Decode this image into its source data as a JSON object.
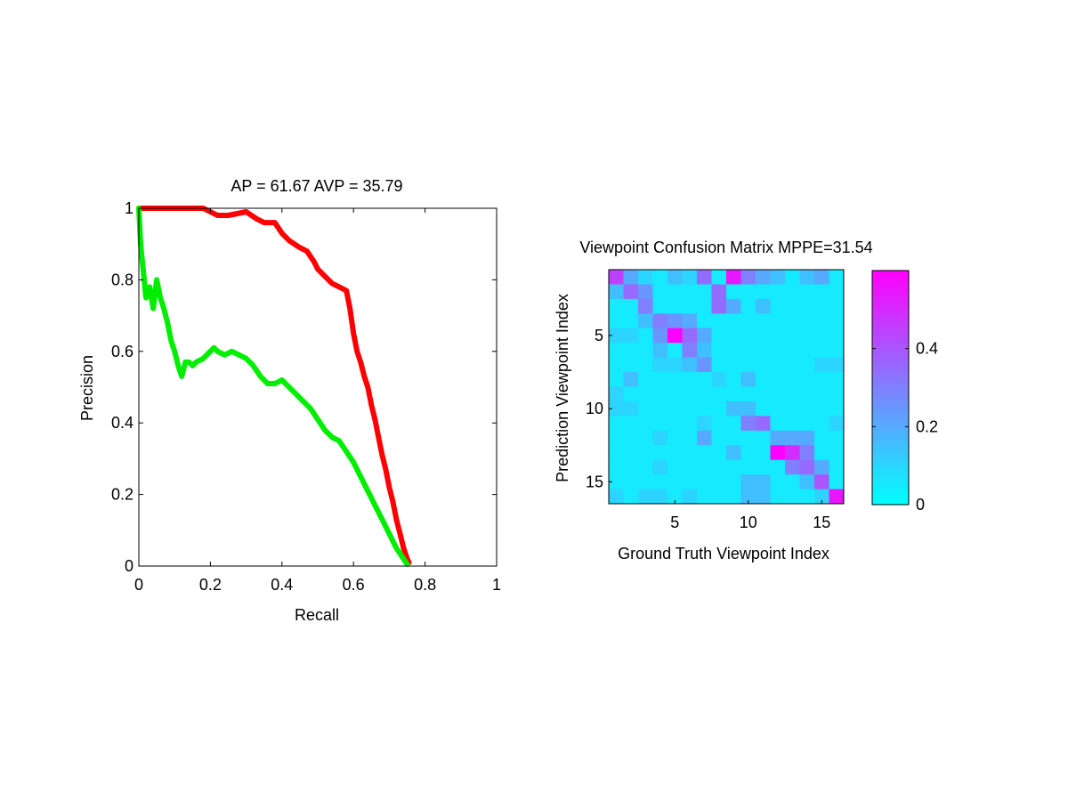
{
  "chart_data": [
    {
      "type": "line",
      "title": "AP = 61.67 AVP = 35.79",
      "xlabel": "Recall",
      "ylabel": "Precision",
      "xlim": [
        0,
        1
      ],
      "ylim": [
        0,
        1
      ],
      "xticks": [
        "0",
        "0.2",
        "0.4",
        "0.6",
        "0.8",
        "1"
      ],
      "yticks": [
        "0",
        "0.2",
        "0.4",
        "0.6",
        "0.8",
        "1"
      ],
      "grid": false,
      "series": [
        {
          "color": "#ff0000",
          "x": [
            0.0,
            0.01,
            0.05,
            0.1,
            0.15,
            0.18,
            0.2,
            0.22,
            0.25,
            0.3,
            0.33,
            0.35,
            0.38,
            0.4,
            0.42,
            0.45,
            0.47,
            0.49,
            0.5,
            0.52,
            0.54,
            0.56,
            0.58,
            0.59,
            0.6,
            0.61,
            0.62,
            0.63,
            0.64,
            0.65,
            0.66,
            0.67,
            0.68,
            0.69,
            0.7,
            0.71,
            0.72,
            0.73,
            0.74,
            0.75,
            0.755
          ],
          "y": [
            1.0,
            1.0,
            1.0,
            1.0,
            1.0,
            1.0,
            0.99,
            0.98,
            0.98,
            0.99,
            0.97,
            0.96,
            0.96,
            0.93,
            0.91,
            0.89,
            0.88,
            0.85,
            0.83,
            0.81,
            0.79,
            0.78,
            0.77,
            0.72,
            0.65,
            0.6,
            0.57,
            0.53,
            0.5,
            0.45,
            0.41,
            0.36,
            0.31,
            0.27,
            0.22,
            0.18,
            0.13,
            0.09,
            0.05,
            0.02,
            0.01
          ]
        },
        {
          "color": "#00ee00",
          "x": [
            0.0,
            0.005,
            0.01,
            0.015,
            0.02,
            0.03,
            0.04,
            0.05,
            0.06,
            0.07,
            0.08,
            0.09,
            0.1,
            0.11,
            0.12,
            0.13,
            0.14,
            0.15,
            0.16,
            0.18,
            0.2,
            0.21,
            0.22,
            0.24,
            0.26,
            0.28,
            0.3,
            0.32,
            0.34,
            0.36,
            0.38,
            0.4,
            0.42,
            0.44,
            0.46,
            0.48,
            0.5,
            0.52,
            0.54,
            0.56,
            0.58,
            0.6,
            0.62,
            0.64,
            0.66,
            0.68,
            0.7,
            0.72,
            0.74,
            0.75
          ],
          "y": [
            1.0,
            0.9,
            0.85,
            0.8,
            0.75,
            0.78,
            0.72,
            0.8,
            0.75,
            0.72,
            0.68,
            0.63,
            0.6,
            0.56,
            0.53,
            0.57,
            0.57,
            0.56,
            0.57,
            0.58,
            0.6,
            0.61,
            0.6,
            0.59,
            0.6,
            0.59,
            0.58,
            0.56,
            0.53,
            0.51,
            0.51,
            0.52,
            0.5,
            0.48,
            0.46,
            0.44,
            0.41,
            0.38,
            0.36,
            0.35,
            0.32,
            0.29,
            0.25,
            0.21,
            0.17,
            0.13,
            0.09,
            0.05,
            0.02,
            0.005
          ]
        }
      ]
    },
    {
      "type": "heatmap",
      "title": "Viewpoint Confusion Matrix MPPE=31.54",
      "xlabel": "Ground Truth Viewpoint Index",
      "ylabel": "Prediction Viewpoint Index",
      "xticks": [
        5,
        10,
        15
      ],
      "yticks": [
        5,
        10,
        15
      ],
      "colormap": "cool",
      "color_low": "#00ffff",
      "color_high": "#ff00ff",
      "clim": [
        0,
        0.6
      ],
      "colorbar_ticks": [
        0,
        0.2,
        0.4
      ],
      "matrix": [
        [
          0.45,
          0.2,
          0.1,
          0.05,
          0.15,
          0.1,
          0.35,
          0.05,
          0.55,
          0.3,
          0.2,
          0.15,
          0.05,
          0.15,
          0.2,
          0.05
        ],
        [
          0.15,
          0.35,
          0.25,
          0.05,
          0.05,
          0.05,
          0.05,
          0.35,
          0.05,
          0.05,
          0.05,
          0.05,
          0.05,
          0.05,
          0.05,
          0.05
        ],
        [
          0.05,
          0.05,
          0.3,
          0.05,
          0.05,
          0.05,
          0.05,
          0.35,
          0.2,
          0.05,
          0.15,
          0.05,
          0.05,
          0.05,
          0.05,
          0.05
        ],
        [
          0.05,
          0.05,
          0.15,
          0.3,
          0.25,
          0.2,
          0.05,
          0.05,
          0.05,
          0.05,
          0.05,
          0.05,
          0.05,
          0.05,
          0.05,
          0.05
        ],
        [
          0.1,
          0.1,
          0.05,
          0.25,
          0.6,
          0.35,
          0.2,
          0.05,
          0.05,
          0.05,
          0.05,
          0.05,
          0.05,
          0.05,
          0.05,
          0.05
        ],
        [
          0.05,
          0.05,
          0.05,
          0.15,
          0.05,
          0.3,
          0.15,
          0.05,
          0.05,
          0.05,
          0.05,
          0.05,
          0.05,
          0.05,
          0.05,
          0.05
        ],
        [
          0.05,
          0.05,
          0.05,
          0.1,
          0.1,
          0.15,
          0.25,
          0.05,
          0.05,
          0.05,
          0.05,
          0.05,
          0.05,
          0.05,
          0.1,
          0.1
        ],
        [
          0.05,
          0.15,
          0.05,
          0.05,
          0.05,
          0.05,
          0.05,
          0.1,
          0.05,
          0.15,
          0.05,
          0.05,
          0.05,
          0.05,
          0.05,
          0.05
        ],
        [
          0.1,
          0.05,
          0.05,
          0.05,
          0.05,
          0.05,
          0.05,
          0.05,
          0.05,
          0.05,
          0.05,
          0.05,
          0.05,
          0.05,
          0.05,
          0.05
        ],
        [
          0.1,
          0.1,
          0.05,
          0.05,
          0.05,
          0.05,
          0.05,
          0.05,
          0.15,
          0.15,
          0.05,
          0.05,
          0.05,
          0.05,
          0.05,
          0.05
        ],
        [
          0.05,
          0.05,
          0.05,
          0.05,
          0.05,
          0.05,
          0.1,
          0.05,
          0.05,
          0.3,
          0.35,
          0.05,
          0.05,
          0.05,
          0.05,
          0.1
        ],
        [
          0.05,
          0.05,
          0.05,
          0.1,
          0.05,
          0.05,
          0.2,
          0.05,
          0.05,
          0.05,
          0.05,
          0.2,
          0.2,
          0.2,
          0.05,
          0.05
        ],
        [
          0.05,
          0.05,
          0.05,
          0.05,
          0.05,
          0.05,
          0.05,
          0.05,
          0.15,
          0.05,
          0.05,
          0.6,
          0.5,
          0.3,
          0.05,
          0.05
        ],
        [
          0.05,
          0.05,
          0.05,
          0.1,
          0.05,
          0.05,
          0.05,
          0.05,
          0.05,
          0.05,
          0.05,
          0.05,
          0.3,
          0.35,
          0.2,
          0.05
        ],
        [
          0.05,
          0.05,
          0.05,
          0.05,
          0.05,
          0.05,
          0.05,
          0.05,
          0.05,
          0.15,
          0.15,
          0.05,
          0.05,
          0.15,
          0.4,
          0.05
        ],
        [
          0.1,
          0.05,
          0.1,
          0.1,
          0.05,
          0.1,
          0.05,
          0.05,
          0.05,
          0.15,
          0.15,
          0.05,
          0.05,
          0.05,
          0.1,
          0.55
        ]
      ]
    }
  ]
}
